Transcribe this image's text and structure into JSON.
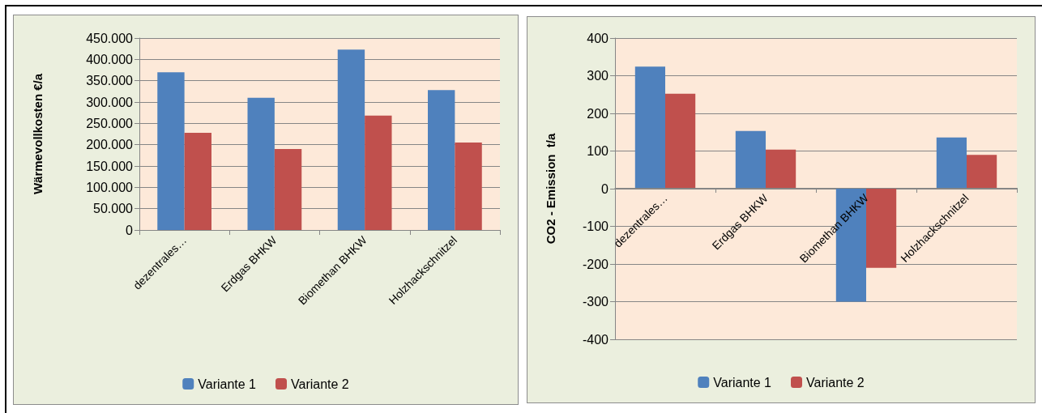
{
  "chart_data": [
    {
      "type": "bar",
      "ylabel": "Wärmevollkosten €/a",
      "categories": [
        "dezentrales…",
        "Erdgas BHKW",
        "Biomethan BHKW",
        "Holzhackschnitzel"
      ],
      "series": [
        {
          "name": "Variante 1",
          "color": "#4f81bd",
          "values": [
            370000,
            310000,
            423000,
            328000
          ]
        },
        {
          "name": "Variante 2",
          "color": "#c0504d",
          "values": [
            228000,
            190000,
            268000,
            205000
          ]
        }
      ],
      "ylim": [
        0,
        450000
      ],
      "yticks": [
        {
          "value": 0,
          "label": "0"
        },
        {
          "value": 50000,
          "label": "50.000"
        },
        {
          "value": 100000,
          "label": "100.000"
        },
        {
          "value": 150000,
          "label": "150.000"
        },
        {
          "value": 200000,
          "label": "200.000"
        },
        {
          "value": 250000,
          "label": "250.000"
        },
        {
          "value": 300000,
          "label": "300.000"
        },
        {
          "value": 350000,
          "label": "350.000"
        },
        {
          "value": 400000,
          "label": "400.000"
        },
        {
          "value": 450000,
          "label": "450.000"
        }
      ],
      "grid": "y",
      "legend": "bottom"
    },
    {
      "type": "bar",
      "ylabel": "CO2 - Emission  t/a",
      "categories": [
        "dezentrales…",
        "Erdgas BHKW",
        "Biomethan BHKW",
        "Holzhackschnitzel"
      ],
      "series": [
        {
          "name": "Variante 1",
          "color": "#4f81bd",
          "values": [
            324,
            153,
            -300,
            136
          ]
        },
        {
          "name": "Variante 2",
          "color": "#c0504d",
          "values": [
            252,
            104,
            -210,
            90
          ]
        }
      ],
      "ylim": [
        -400,
        400
      ],
      "yticks": [
        -400,
        -300,
        -200,
        -100,
        0,
        100,
        200,
        300,
        400
      ],
      "grid": "y",
      "legend": "bottom"
    }
  ]
}
